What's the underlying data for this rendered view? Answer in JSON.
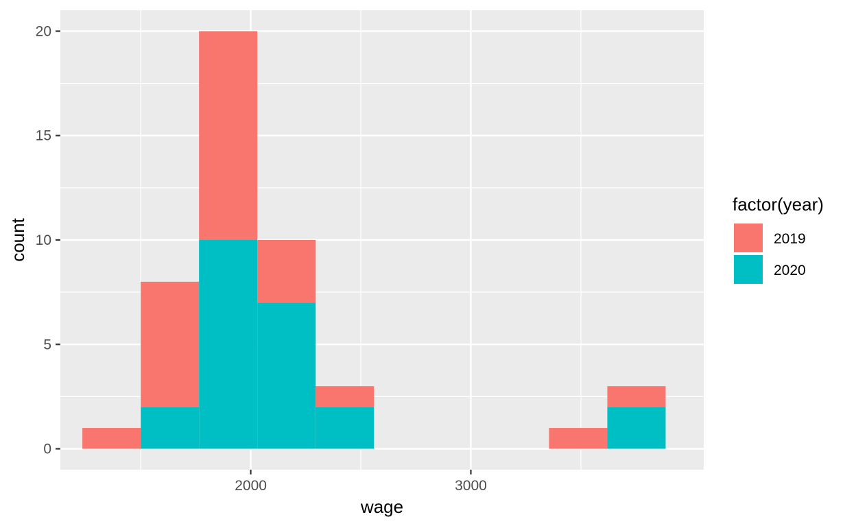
{
  "chart_data": {
    "type": "bar",
    "subtype": "stacked-histogram",
    "xlabel": "wage",
    "ylabel": "count",
    "xlim": [
      1135,
      4058
    ],
    "ylim": [
      -1.0,
      21.0
    ],
    "x_ticks": [
      2000,
      3000
    ],
    "y_ticks": [
      0,
      5,
      10,
      15,
      20
    ],
    "grid": true,
    "bins": [
      {
        "from": 1235,
        "to": 1500
      },
      {
        "from": 1500,
        "to": 1765
      },
      {
        "from": 1765,
        "to": 2030
      },
      {
        "from": 2030,
        "to": 2295
      },
      {
        "from": 2295,
        "to": 2560
      },
      {
        "from": 2560,
        "to": 2825
      },
      {
        "from": 2825,
        "to": 3090
      },
      {
        "from": 3090,
        "to": 3355
      },
      {
        "from": 3355,
        "to": 3620
      },
      {
        "from": 3620,
        "to": 3885
      }
    ],
    "series": [
      {
        "name": "2020",
        "color": "#00BFC4",
        "values": [
          0,
          2,
          10,
          7,
          2,
          0,
          0,
          0,
          0,
          2
        ]
      },
      {
        "name": "2019",
        "color": "#F8766D",
        "values": [
          1,
          6,
          10,
          3,
          1,
          0,
          0,
          0,
          1,
          1
        ]
      }
    ],
    "legend": {
      "title": "factor(year)",
      "position": "right",
      "items": [
        {
          "label": "2019",
          "color": "#F8766D"
        },
        {
          "label": "2020",
          "color": "#00BFC4"
        }
      ]
    }
  }
}
